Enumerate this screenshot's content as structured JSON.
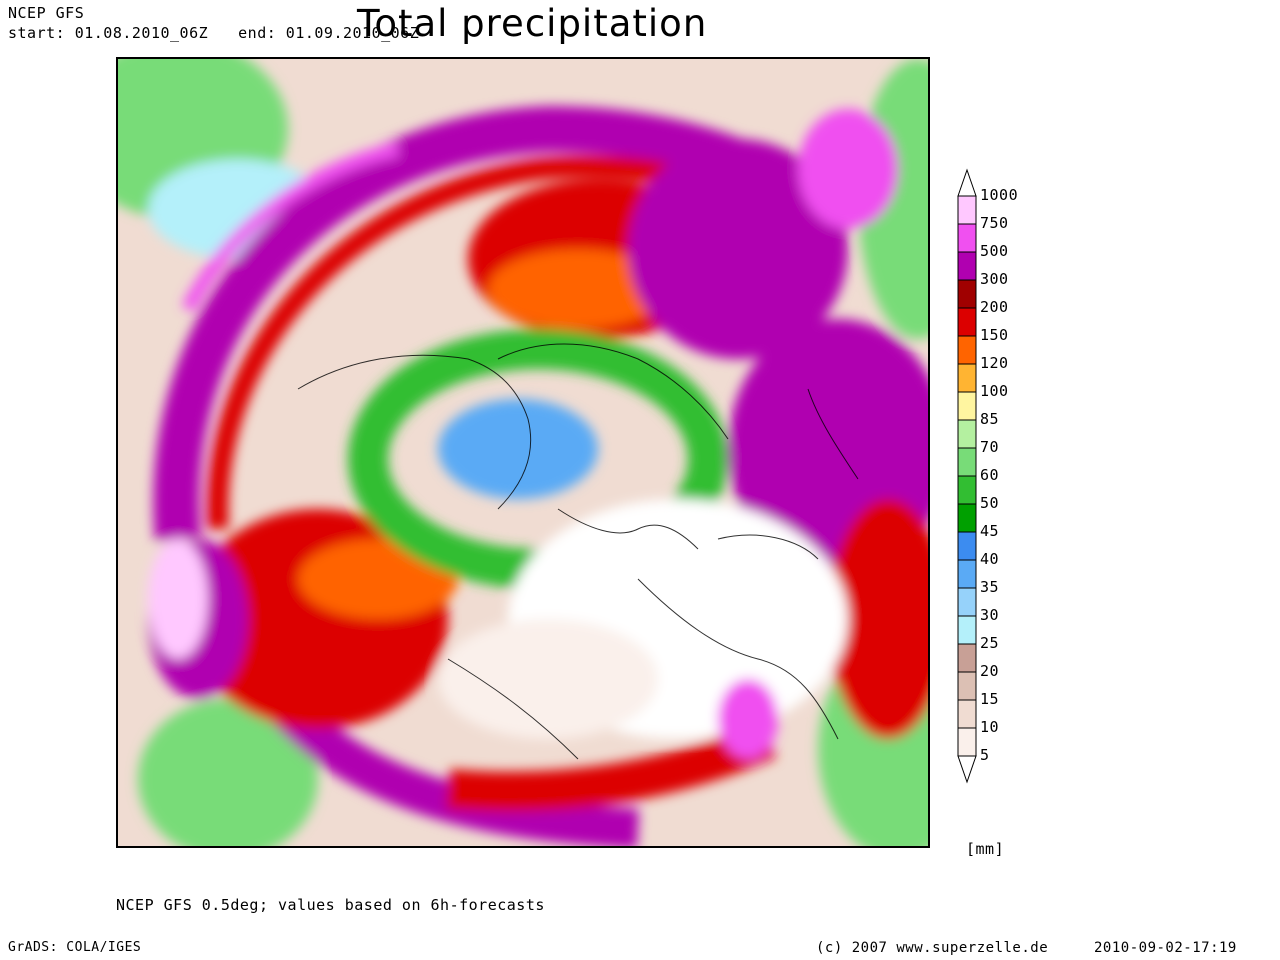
{
  "header": {
    "model": "NCEP GFS",
    "start": "start: 01.08.2010_06Z",
    "end": "end: 01.09.2010_06Z",
    "title": "Total precipitation"
  },
  "map": {
    "projection": "polar-stereographic",
    "variable": "total precipitation accumulation"
  },
  "legend": {
    "units": "[mm]",
    "levels": [
      "1000",
      "750",
      "500",
      "300",
      "200",
      "150",
      "120",
      "100",
      "85",
      "70",
      "60",
      "50",
      "45",
      "40",
      "35",
      "30",
      "25",
      "20",
      "15",
      "10",
      "5"
    ],
    "colors": [
      "#ffc8ff",
      "#f050f0",
      "#b000b0",
      "#a00000",
      "#dc0000",
      "#ff6400",
      "#ffb432",
      "#fff5a0",
      "#b4f0a0",
      "#78dc78",
      "#32be32",
      "#00a000",
      "#3c8cf0",
      "#5aaaf5",
      "#96d2fa",
      "#b4f0fa",
      "#c8a096",
      "#dcc0b4",
      "#f0dcd2",
      "#faf0eb"
    ]
  },
  "footer": {
    "note": "NCEP GFS 0.5deg; values based on 6h-forecasts",
    "software": "GrADS: COLA/IGES",
    "copyright": "(c) 2007 www.superzelle.de",
    "timestamp": "2010-09-02-17:19"
  }
}
